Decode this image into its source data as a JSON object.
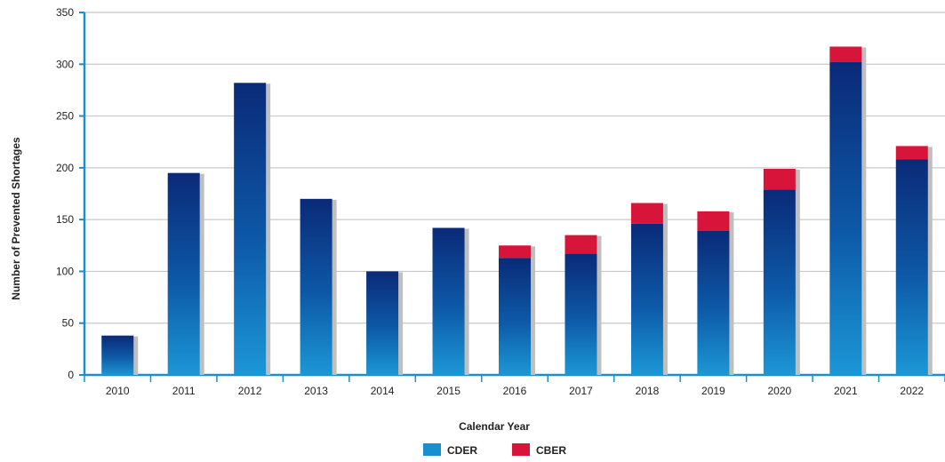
{
  "chart_data": {
    "type": "bar",
    "stacked": true,
    "title": "",
    "xlabel": "Calendar Year",
    "ylabel": "Number of Prevented Shortages",
    "ylim": [
      0,
      350
    ],
    "yticks": [
      "0",
      "50",
      "100",
      "150",
      "200",
      "250",
      "300",
      "350"
    ],
    "categories": [
      "2010",
      "2011",
      "2012",
      "2013",
      "2014",
      "2015",
      "2016",
      "2017",
      "2018",
      "2019",
      "2020",
      "2021",
      "2022"
    ],
    "series": [
      {
        "name": "CDER",
        "color": "#1a8fd0",
        "color_top": "#0a2a78",
        "values": [
          38,
          195,
          282,
          170,
          100,
          142,
          113,
          117,
          146,
          139,
          179,
          302,
          208
        ]
      },
      {
        "name": "CBER",
        "color": "#d8143a",
        "values": [
          0,
          0,
          0,
          0,
          0,
          0,
          12,
          18,
          20,
          19,
          20,
          15,
          13
        ]
      }
    ],
    "grid": true,
    "legend_position": "bottom-center"
  }
}
